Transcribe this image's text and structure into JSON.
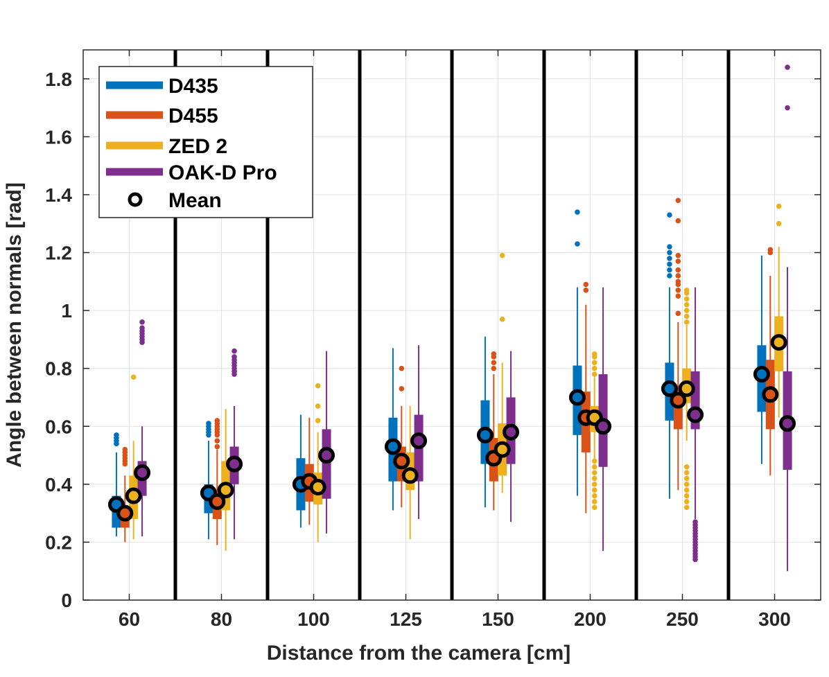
{
  "chart_data": {
    "type": "box",
    "title": "",
    "xlabel": "Distance from the camera [cm]",
    "ylabel": "Angle between normals [rad]",
    "ylim": [
      0,
      1.9
    ],
    "yticks": [
      0,
      0.2,
      0.4,
      0.6,
      0.8,
      1,
      1.2,
      1.4,
      1.6,
      1.8
    ],
    "ytick_labels": [
      "0",
      "0.2",
      "0.4",
      "0.6",
      "0.8",
      "1",
      "1.2",
      "1.4",
      "1.6",
      "1.8"
    ],
    "categories": [
      "60",
      "80",
      "100",
      "125",
      "150",
      "200",
      "250",
      "300"
    ],
    "grid": true,
    "legend_position": "top-left",
    "mean_label": "Mean",
    "series": [
      {
        "name": "D435",
        "color": "#0072BD",
        "q1": [
          0.25,
          0.3,
          0.31,
          0.41,
          0.47,
          0.57,
          0.62,
          0.65
        ],
        "q3": [
          0.36,
          0.4,
          0.49,
          0.63,
          0.69,
          0.81,
          0.82,
          0.88
        ],
        "whisker_low": [
          0.22,
          0.21,
          0.25,
          0.31,
          0.32,
          0.36,
          0.35,
          0.47
        ],
        "whisker_high": [
          0.51,
          0.55,
          0.64,
          0.87,
          0.91,
          1.08,
          1.08,
          1.19
        ],
        "mean": [
          0.33,
          0.37,
          0.4,
          0.53,
          0.57,
          0.7,
          0.73,
          0.78
        ],
        "outliers": [
          [
            0.54,
            0.55,
            0.56,
            0.57
          ],
          [
            0.57,
            0.58,
            0.59,
            0.6,
            0.61
          ],
          [],
          [],
          [],
          [
            1.23,
            1.34
          ],
          [
            1.12,
            1.14,
            1.16,
            1.18,
            1.2,
            1.22,
            1.33
          ],
          []
        ]
      },
      {
        "name": "D455",
        "color": "#D95319",
        "q1": [
          0.25,
          0.28,
          0.34,
          0.41,
          0.41,
          0.51,
          0.59,
          0.59
        ],
        "q3": [
          0.32,
          0.36,
          0.47,
          0.53,
          0.56,
          0.72,
          0.74,
          0.83
        ],
        "whisker_low": [
          0.2,
          0.19,
          0.26,
          0.32,
          0.31,
          0.3,
          0.38,
          0.43
        ],
        "whisker_high": [
          0.43,
          0.52,
          0.63,
          0.67,
          0.78,
          1.02,
          0.96,
          1.12
        ],
        "mean": [
          0.3,
          0.34,
          0.41,
          0.48,
          0.49,
          0.63,
          0.69,
          0.71
        ],
        "outliers": [
          [
            0.47,
            0.48,
            0.49,
            0.5,
            0.51,
            0.52
          ],
          [
            0.53,
            0.55,
            0.57,
            0.58,
            0.59,
            0.6,
            0.61,
            0.62
          ],
          [],
          [
            0.73,
            0.8
          ],
          [
            0.8,
            0.82,
            0.84,
            0.85
          ],
          [
            1.07,
            1.09
          ],
          [
            0.99,
            1.05,
            1.07,
            1.09,
            1.1,
            1.12,
            1.14,
            1.17,
            1.19,
            1.31,
            1.38
          ],
          [
            1.2,
            1.21
          ]
        ]
      },
      {
        "name": "ZED 2",
        "color": "#EDB120",
        "q1": [
          0.28,
          0.31,
          0.33,
          0.38,
          0.43,
          0.58,
          0.68,
          0.79
        ],
        "q3": [
          0.43,
          0.48,
          0.44,
          0.51,
          0.61,
          0.67,
          0.8,
          0.98
        ],
        "whisker_low": [
          0.21,
          0.17,
          0.2,
          0.21,
          0.37,
          0.48,
          0.55,
          0.63
        ],
        "whisker_high": [
          0.55,
          0.66,
          0.58,
          0.67,
          0.82,
          0.77,
          0.95,
          1.22
        ],
        "mean": [
          0.36,
          0.38,
          0.39,
          0.43,
          0.52,
          0.63,
          0.73,
          0.89
        ],
        "outliers": [
          [
            0.77
          ],
          [],
          [
            0.62,
            0.67,
            0.74
          ],
          [],
          [
            0.97,
            1.19
          ],
          [
            0.32,
            0.34,
            0.36,
            0.38,
            0.4,
            0.42,
            0.44,
            0.46,
            0.48,
            0.78,
            0.8,
            0.82,
            0.84,
            0.85
          ],
          [
            0.32,
            0.34,
            0.36,
            0.38,
            0.4,
            0.42,
            0.44,
            0.46,
            0.96,
            0.98,
            1.0,
            1.02,
            1.04,
            1.06,
            1.07
          ],
          [
            1.3,
            1.36
          ]
        ]
      },
      {
        "name": "OAK-D Pro",
        "color": "#7E2F8E",
        "q1": [
          0.36,
          0.4,
          0.35,
          0.41,
          0.47,
          0.46,
          0.59,
          0.45
        ],
        "q3": [
          0.48,
          0.53,
          0.59,
          0.64,
          0.7,
          0.78,
          0.79,
          0.79
        ],
        "whisker_low": [
          0.22,
          0.21,
          0.23,
          0.28,
          0.27,
          0.17,
          0.28,
          0.1
        ],
        "whisker_high": [
          0.6,
          0.67,
          0.86,
          0.88,
          0.86,
          1.08,
          1.08,
          1.15
        ],
        "mean": [
          0.44,
          0.47,
          0.5,
          0.55,
          0.58,
          0.6,
          0.64,
          0.61
        ],
        "outliers": [
          [
            0.89,
            0.9,
            0.91,
            0.92,
            0.93,
            0.94,
            0.96
          ],
          [
            0.78,
            0.79,
            0.8,
            0.81,
            0.82,
            0.83,
            0.84,
            0.86
          ],
          [],
          [],
          [],
          [],
          [
            0.14,
            0.15,
            0.16,
            0.17,
            0.18,
            0.19,
            0.2,
            0.21,
            0.22,
            0.23,
            0.24,
            0.25,
            0.26,
            0.27
          ],
          [
            1.7,
            1.84
          ]
        ]
      }
    ]
  }
}
